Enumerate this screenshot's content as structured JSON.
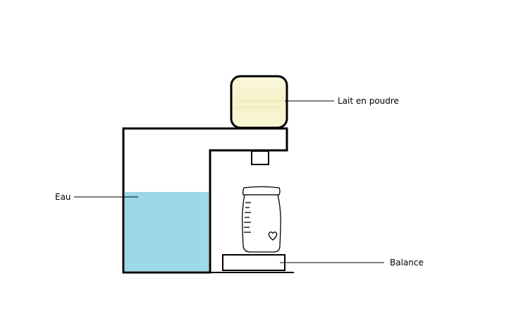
{
  "labels": {
    "powder": "Lait en poudre",
    "water": "Eau",
    "scale": "Balance"
  },
  "colors": {
    "water": "#9bd8ea",
    "powder": "#f8f4cf",
    "stroke": "#000000",
    "background": "#ffffff"
  },
  "icons": {
    "bottle_mark": "heart-icon"
  }
}
